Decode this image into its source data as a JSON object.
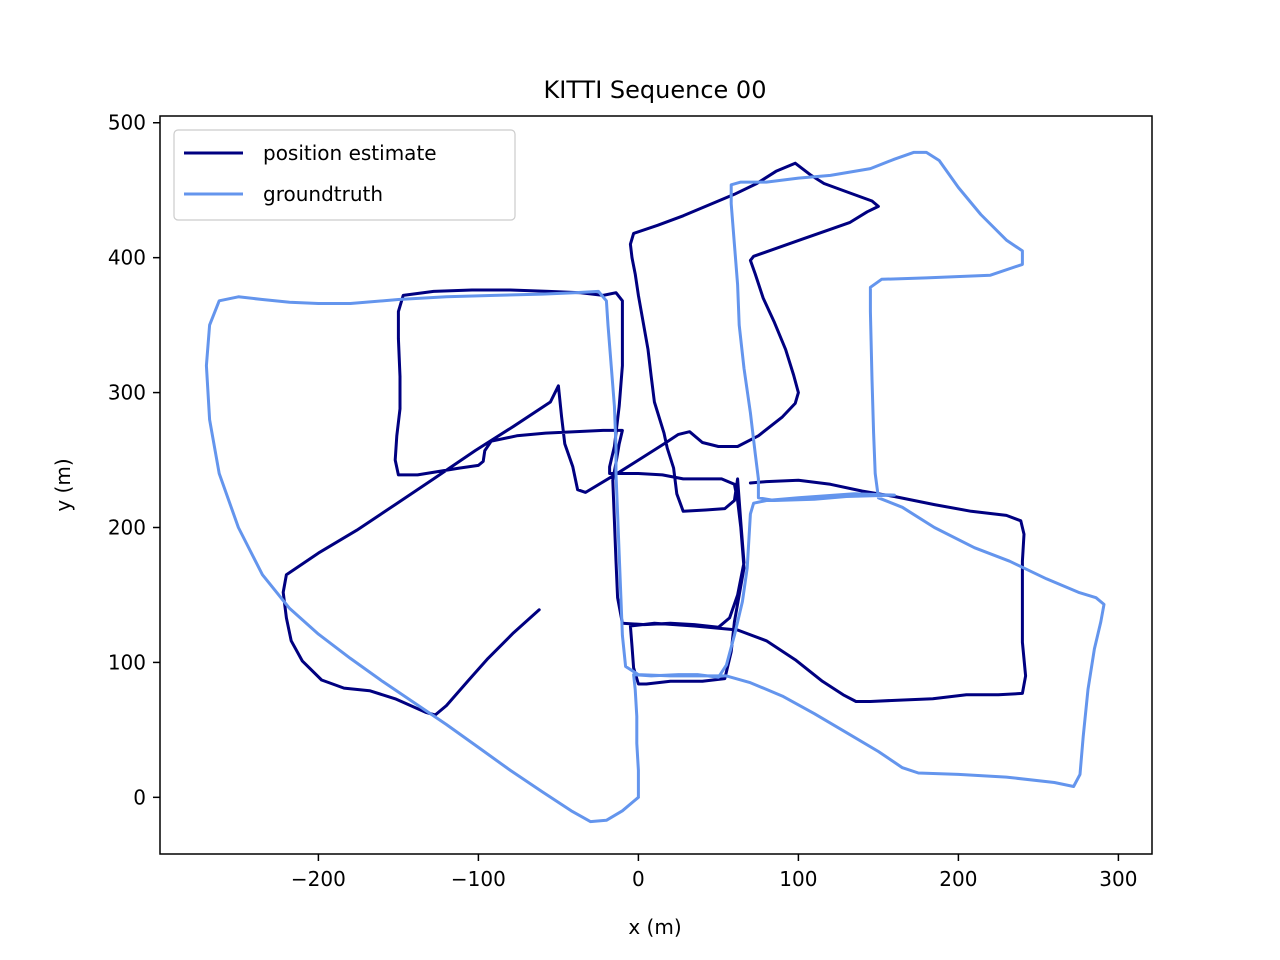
{
  "chart_data": {
    "type": "line",
    "title": "KITTI Sequence 00",
    "xlabel": "x (m)",
    "ylabel": "y (m)",
    "xlim": [
      -299,
      321
    ],
    "ylim": [
      -42,
      505
    ],
    "xticks": [
      -200,
      -100,
      0,
      100,
      200,
      300
    ],
    "xtick_labels": [
      "−200",
      "−100",
      "0",
      "100",
      "200",
      "300"
    ],
    "yticks": [
      0,
      100,
      200,
      300,
      400,
      500
    ],
    "ytick_labels": [
      "0",
      "100",
      "200",
      "300",
      "400",
      "500"
    ],
    "grid": false,
    "legend": "upper-left",
    "colors": {
      "estimate": "#000080",
      "groundtruth": "#6495ED"
    },
    "series": [
      {
        "name": "position estimate",
        "color": "#000080",
        "points": [
          [
            -62,
            139
          ],
          [
            -78,
            122
          ],
          [
            -94,
            103
          ],
          [
            -106,
            87
          ],
          [
            -120,
            68
          ],
          [
            -127,
            61
          ],
          [
            -133,
            63
          ],
          [
            -152,
            73
          ],
          [
            -168,
            79
          ],
          [
            -184,
            81
          ],
          [
            -198,
            87
          ],
          [
            -210,
            101
          ],
          [
            -217,
            116
          ],
          [
            -220,
            133
          ],
          [
            -222,
            152
          ],
          [
            -220,
            165
          ],
          [
            -200,
            181
          ],
          [
            -176,
            198
          ],
          [
            -152,
            217
          ],
          [
            -128,
            236
          ],
          [
            -102,
            257
          ],
          [
            -78,
            275
          ],
          [
            -55,
            293
          ],
          [
            -50,
            305
          ],
          [
            -48,
            282
          ],
          [
            -46,
            262
          ],
          [
            -41,
            245
          ],
          [
            -38,
            228
          ],
          [
            -33,
            226
          ],
          [
            -12,
            241
          ],
          [
            16,
            262
          ],
          [
            25,
            269
          ],
          [
            32,
            271
          ],
          [
            40,
            263
          ],
          [
            50,
            260
          ],
          [
            62,
            260
          ],
          [
            75,
            268
          ],
          [
            90,
            282
          ],
          [
            98,
            292
          ],
          [
            100,
            300
          ],
          [
            97,
            313
          ],
          [
            92,
            332
          ],
          [
            85,
            352
          ],
          [
            78,
            370
          ],
          [
            73,
            388
          ],
          [
            70,
            398
          ],
          [
            72,
            401
          ],
          [
            84,
            406
          ],
          [
            103,
            414
          ],
          [
            120,
            421
          ],
          [
            132,
            426
          ],
          [
            143,
            434
          ],
          [
            150,
            438
          ],
          [
            146,
            442
          ],
          [
            132,
            448
          ],
          [
            116,
            455
          ],
          [
            108,
            461
          ],
          [
            98,
            470
          ],
          [
            86,
            464
          ],
          [
            74,
            455
          ],
          [
            60,
            447
          ],
          [
            44,
            439
          ],
          [
            28,
            431
          ],
          [
            12,
            424
          ],
          [
            -3,
            418
          ],
          [
            -5,
            410
          ],
          [
            -4,
            400
          ],
          [
            -2,
            388
          ],
          [
            0,
            372
          ],
          [
            3,
            352
          ],
          [
            6,
            332
          ],
          [
            8,
            312
          ],
          [
            10,
            293
          ],
          [
            16,
            270
          ],
          [
            18,
            259
          ],
          [
            22,
            244
          ],
          [
            24,
            225
          ],
          [
            28,
            212
          ],
          [
            42,
            213
          ],
          [
            54,
            214
          ],
          [
            60,
            220
          ],
          [
            62,
            236
          ],
          [
            64,
            204
          ],
          [
            66,
            174
          ],
          [
            62,
            150
          ],
          [
            57,
            133
          ],
          [
            50,
            126
          ],
          [
            35,
            128
          ],
          [
            20,
            129
          ],
          [
            4,
            128
          ],
          [
            -10,
            129
          ],
          [
            -13,
            148
          ],
          [
            -14,
            175
          ],
          [
            -15,
            205
          ],
          [
            -16,
            235
          ],
          [
            -14,
            248
          ],
          [
            -12,
            262
          ],
          [
            -10,
            272
          ],
          [
            -22,
            272
          ],
          [
            -40,
            271
          ],
          [
            -58,
            270
          ],
          [
            -76,
            268
          ],
          [
            -92,
            264
          ],
          [
            -96,
            257
          ],
          [
            -97,
            249
          ],
          [
            -100,
            246
          ],
          [
            -112,
            244
          ],
          [
            -138,
            239
          ],
          [
            -150,
            239
          ],
          [
            -152,
            250
          ],
          [
            -151,
            268
          ],
          [
            -149,
            288
          ],
          [
            -149,
            312
          ],
          [
            -150,
            340
          ],
          [
            -150,
            360
          ],
          [
            -147,
            372
          ],
          [
            -128,
            375
          ],
          [
            -104,
            376
          ],
          [
            -80,
            376
          ],
          [
            -56,
            375
          ],
          [
            -36,
            374
          ],
          [
            -22,
            372
          ],
          [
            -14,
            374
          ],
          [
            -10,
            368
          ],
          [
            -10,
            350
          ],
          [
            -10,
            320
          ],
          [
            -12,
            290
          ],
          [
            -15,
            260
          ],
          [
            -18,
            245
          ],
          [
            -18,
            240
          ],
          [
            0,
            240
          ],
          [
            15,
            239
          ],
          [
            28,
            236
          ],
          [
            52,
            236
          ],
          [
            60,
            232
          ],
          [
            62,
            220
          ],
          [
            64,
            200
          ],
          [
            66,
            170
          ],
          [
            63,
            150
          ],
          [
            60,
            130
          ],
          [
            58,
            108
          ],
          [
            55,
            93
          ],
          [
            54,
            88
          ],
          [
            40,
            86
          ],
          [
            20,
            86
          ],
          [
            5,
            84
          ],
          [
            0,
            84
          ],
          [
            -3,
            96
          ],
          [
            -4,
            112
          ],
          [
            -5,
            127
          ],
          [
            10,
            129
          ],
          [
            35,
            127
          ],
          [
            62,
            124
          ],
          [
            80,
            116
          ],
          [
            98,
            102
          ],
          [
            115,
            86
          ],
          [
            128,
            76
          ],
          [
            136,
            71
          ],
          [
            145,
            71
          ],
          [
            162,
            72
          ],
          [
            184,
            73
          ],
          [
            205,
            76
          ],
          [
            225,
            76
          ],
          [
            240,
            77
          ],
          [
            242,
            90
          ],
          [
            240,
            115
          ],
          [
            240,
            145
          ],
          [
            240,
            175
          ],
          [
            241,
            195
          ],
          [
            239,
            205
          ],
          [
            230,
            209
          ],
          [
            208,
            212
          ],
          [
            185,
            217
          ],
          [
            160,
            223
          ],
          [
            140,
            227
          ],
          [
            120,
            232
          ],
          [
            100,
            235
          ],
          [
            80,
            234
          ],
          [
            70,
            233
          ]
        ]
      },
      {
        "name": "groundtruth",
        "color": "#6495ED",
        "points": [
          [
            0,
            0
          ],
          [
            -10,
            -10
          ],
          [
            -20,
            -17
          ],
          [
            -30,
            -18
          ],
          [
            -42,
            -10
          ],
          [
            -60,
            4
          ],
          [
            -80,
            20
          ],
          [
            -100,
            37
          ],
          [
            -120,
            54
          ],
          [
            -140,
            70
          ],
          [
            -160,
            86
          ],
          [
            -180,
            103
          ],
          [
            -200,
            121
          ],
          [
            -218,
            140
          ],
          [
            -235,
            165
          ],
          [
            -250,
            200
          ],
          [
            -262,
            240
          ],
          [
            -268,
            280
          ],
          [
            -270,
            320
          ],
          [
            -268,
            350
          ],
          [
            -262,
            368
          ],
          [
            -250,
            371
          ],
          [
            -235,
            369
          ],
          [
            -218,
            367
          ],
          [
            -200,
            366
          ],
          [
            -180,
            366
          ],
          [
            -150,
            369
          ],
          [
            -120,
            371
          ],
          [
            -90,
            372
          ],
          [
            -60,
            373
          ],
          [
            -40,
            374
          ],
          [
            -25,
            375
          ],
          [
            -20,
            368
          ],
          [
            -19,
            350
          ],
          [
            -17,
            320
          ],
          [
            -15,
            290
          ],
          [
            -14,
            260
          ],
          [
            -14,
            240
          ],
          [
            -13,
            210
          ],
          [
            -12,
            180
          ],
          [
            -11,
            150
          ],
          [
            -10,
            120
          ],
          [
            -8,
            97
          ],
          [
            0,
            91
          ],
          [
            20,
            90
          ],
          [
            40,
            90
          ],
          [
            55,
            90
          ],
          [
            70,
            85
          ],
          [
            90,
            75
          ],
          [
            110,
            62
          ],
          [
            130,
            48
          ],
          [
            150,
            34
          ],
          [
            165,
            22
          ],
          [
            175,
            18
          ],
          [
            200,
            17
          ],
          [
            230,
            15
          ],
          [
            260,
            11
          ],
          [
            272,
            8
          ],
          [
            276,
            17
          ],
          [
            278,
            45
          ],
          [
            281,
            80
          ],
          [
            285,
            110
          ],
          [
            289,
            130
          ],
          [
            291,
            143
          ],
          [
            286,
            148
          ],
          [
            275,
            152
          ],
          [
            255,
            162
          ],
          [
            232,
            175
          ],
          [
            210,
            185
          ],
          [
            185,
            200
          ],
          [
            165,
            215
          ],
          [
            150,
            222
          ],
          [
            148,
            240
          ],
          [
            147,
            270
          ],
          [
            146,
            310
          ],
          [
            145,
            360
          ],
          [
            145,
            378
          ],
          [
            152,
            384
          ],
          [
            180,
            385
          ],
          [
            220,
            387
          ],
          [
            240,
            395
          ],
          [
            240,
            405
          ],
          [
            230,
            413
          ],
          [
            214,
            432
          ],
          [
            200,
            452
          ],
          [
            188,
            472
          ],
          [
            180,
            478
          ],
          [
            172,
            478
          ],
          [
            160,
            473
          ],
          [
            145,
            466
          ],
          [
            120,
            461
          ],
          [
            100,
            459
          ],
          [
            80,
            456
          ],
          [
            64,
            456
          ],
          [
            58,
            454
          ],
          [
            58,
            440
          ],
          [
            60,
            410
          ],
          [
            62,
            380
          ],
          [
            63,
            350
          ],
          [
            66,
            318
          ],
          [
            70,
            285
          ],
          [
            73,
            255
          ],
          [
            75,
            236
          ],
          [
            75,
            222
          ],
          [
            85,
            220
          ],
          [
            110,
            221
          ],
          [
            130,
            223
          ],
          [
            160,
            224
          ],
          [
            135,
            225
          ],
          [
            100,
            222
          ],
          [
            80,
            220
          ],
          [
            72,
            218
          ],
          [
            70,
            210
          ],
          [
            69,
            190
          ],
          [
            68,
            170
          ],
          [
            65,
            145
          ],
          [
            60,
            120
          ],
          [
            55,
            98
          ],
          [
            50,
            89
          ],
          [
            37,
            91
          ],
          [
            25,
            91
          ],
          [
            8,
            90
          ],
          [
            -3,
            91
          ],
          [
            -2,
            80
          ],
          [
            -1,
            60
          ],
          [
            -1,
            40
          ],
          [
            0,
            20
          ],
          [
            0,
            0
          ]
        ]
      }
    ]
  }
}
